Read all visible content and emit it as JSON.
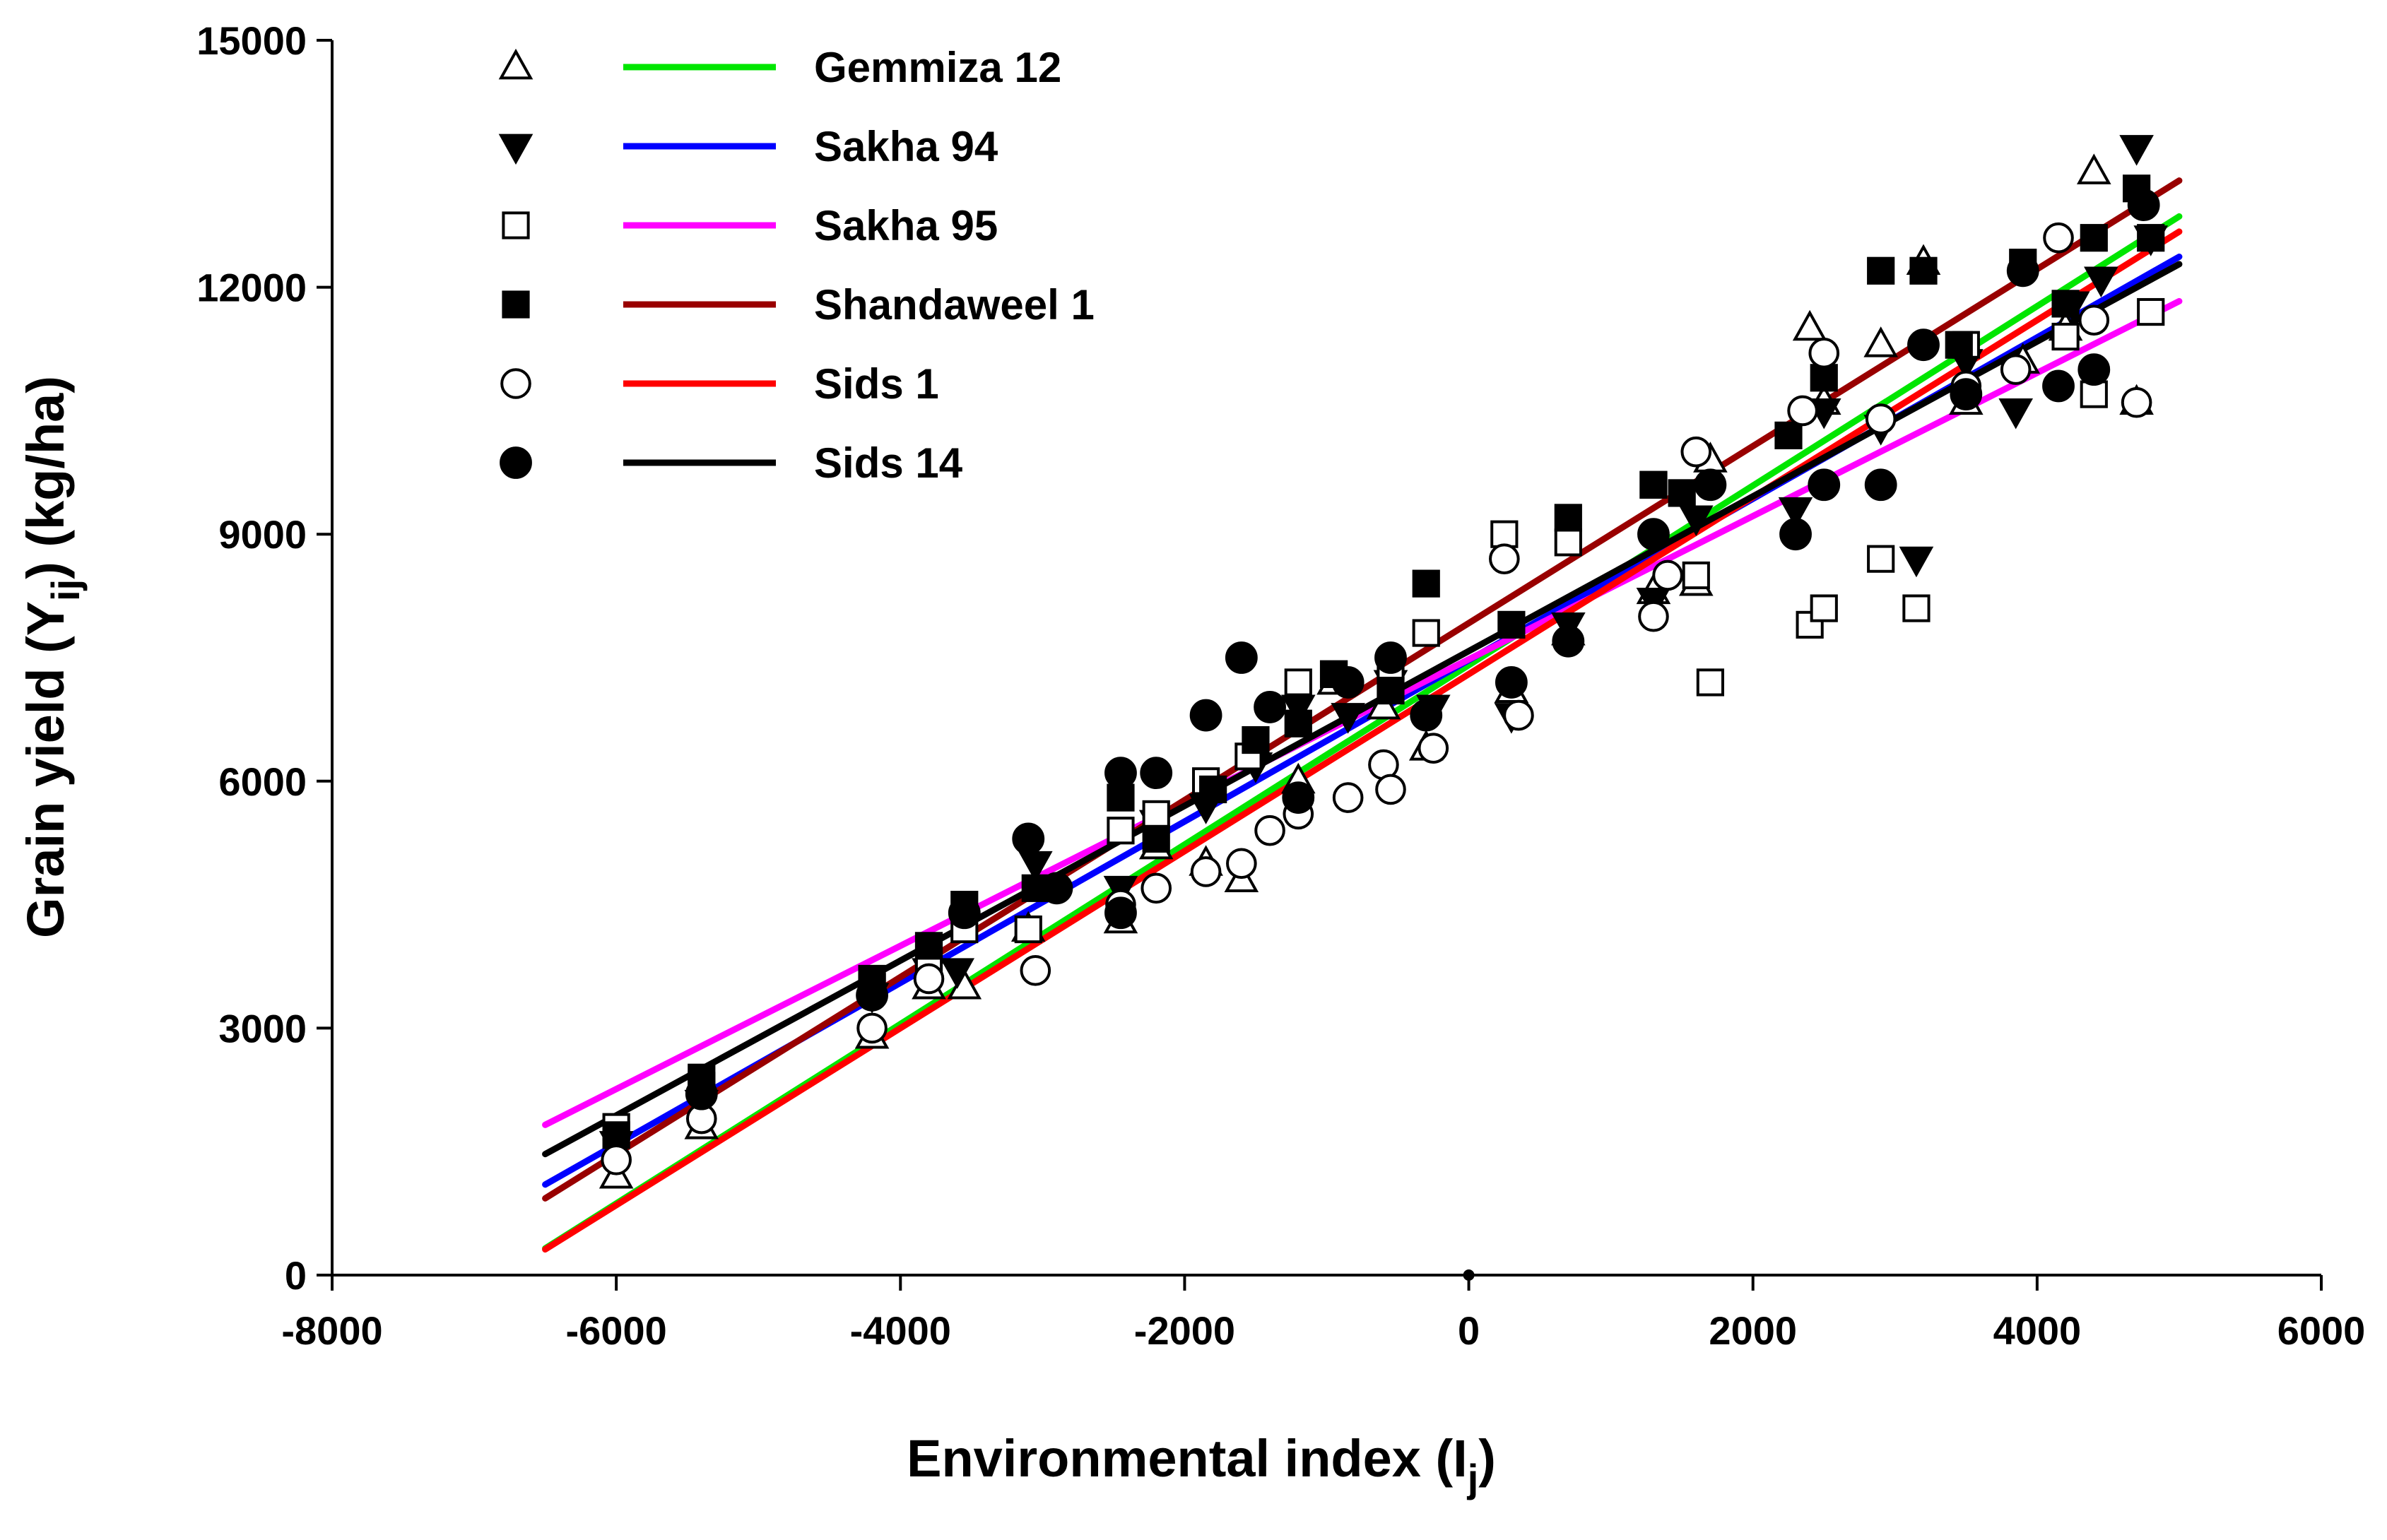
{
  "chart_data": {
    "type": "scatter",
    "title": "",
    "xlabel": "Environmental index (I",
    "xlabel_sub": "j",
    "xlabel_close": ")",
    "ylabel": "Grain yield (Y",
    "ylabel_sub": "ij",
    "ylabel_close": ") (kg/ha)",
    "xlim": [
      -8000,
      6000
    ],
    "ylim": [
      0,
      15000
    ],
    "x_ticks": [
      -8000,
      -6000,
      -4000,
      -2000,
      0,
      2000,
      4000,
      6000
    ],
    "y_ticks": [
      0,
      3000,
      6000,
      9000,
      12000,
      15000
    ],
    "x_tick_labels": [
      "-8000",
      "-6000",
      "-4000",
      "-2000",
      "0",
      "2000",
      "4000",
      "6000"
    ],
    "y_tick_labels": [
      "0",
      "3000",
      "6000",
      "9000",
      "12000",
      "15000"
    ],
    "grid": false,
    "legend_position": "top-left",
    "line_range": [
      -6500,
      5000
    ],
    "series": [
      {
        "name": "Gemmiza 12",
        "marker": "triangle-open",
        "line_color": "#00e600",
        "fit": {
          "intercept": 7410,
          "slope": 1.09
        },
        "points": [
          [
            -6000,
            1200
          ],
          [
            -5400,
            1800
          ],
          [
            -4200,
            2900
          ],
          [
            -3800,
            3500
          ],
          [
            -3550,
            3500
          ],
          [
            -3100,
            4200
          ],
          [
            -2450,
            4300
          ],
          [
            -2200,
            5200
          ],
          [
            -1850,
            5000
          ],
          [
            -1600,
            4800
          ],
          [
            -1200,
            6000
          ],
          [
            -950,
            7200
          ],
          [
            -600,
            6900
          ],
          [
            -300,
            6400
          ],
          [
            300,
            7100
          ],
          [
            700,
            7800
          ],
          [
            1300,
            8300
          ],
          [
            1600,
            8400
          ],
          [
            1700,
            9900
          ],
          [
            2400,
            11500
          ],
          [
            2500,
            10600
          ],
          [
            2900,
            11300
          ],
          [
            3200,
            12300
          ],
          [
            3500,
            10600
          ],
          [
            3900,
            11100
          ],
          [
            4200,
            11500
          ],
          [
            4400,
            13400
          ],
          [
            4700,
            10600
          ]
        ]
      },
      {
        "name": "Sakha 94",
        "marker": "triangle-down-filled",
        "line_color": "#0000ff",
        "fit": {
          "intercept": 7470,
          "slope": 0.98
        },
        "points": [
          [
            -6000,
            1600
          ],
          [
            -5400,
            2100
          ],
          [
            -4200,
            3400
          ],
          [
            -3800,
            3700
          ],
          [
            -3600,
            3700
          ],
          [
            -3050,
            5000
          ],
          [
            -2450,
            4700
          ],
          [
            -2200,
            5500
          ],
          [
            -1850,
            5700
          ],
          [
            -1500,
            6200
          ],
          [
            -1200,
            6900
          ],
          [
            -850,
            6800
          ],
          [
            -550,
            7200
          ],
          [
            -250,
            6900
          ],
          [
            300,
            6800
          ],
          [
            700,
            7900
          ],
          [
            1300,
            8200
          ],
          [
            1600,
            9200
          ],
          [
            2300,
            9300
          ],
          [
            2500,
            10500
          ],
          [
            2900,
            10300
          ],
          [
            3150,
            8700
          ],
          [
            3500,
            11100
          ],
          [
            3850,
            10500
          ],
          [
            4250,
            11800
          ],
          [
            4450,
            12100
          ],
          [
            4700,
            13700
          ],
          [
            4800,
            12600
          ]
        ]
      },
      {
        "name": "Sakha 95",
        "marker": "square-open",
        "line_color": "#ff00ff",
        "fit": {
          "intercept": 7480,
          "slope": 0.87
        },
        "points": [
          [
            -6000,
            1800
          ],
          [
            -5400,
            2300
          ],
          [
            -4200,
            3500
          ],
          [
            -3800,
            3800
          ],
          [
            -3550,
            4200
          ],
          [
            -3100,
            4200
          ],
          [
            -2450,
            5400
          ],
          [
            -2200,
            5600
          ],
          [
            -1850,
            6000
          ],
          [
            -1550,
            6300
          ],
          [
            -1200,
            7200
          ],
          [
            -950,
            7300
          ],
          [
            -550,
            7400
          ],
          [
            -300,
            7800
          ],
          [
            250,
            9000
          ],
          [
            700,
            8900
          ],
          [
            1300,
            9600
          ],
          [
            1600,
            8500
          ],
          [
            1700,
            7200
          ],
          [
            2400,
            7900
          ],
          [
            2500,
            8100
          ],
          [
            2900,
            8700
          ],
          [
            3150,
            8100
          ],
          [
            3500,
            11300
          ],
          [
            4200,
            11400
          ],
          [
            4400,
            10700
          ],
          [
            4800,
            11700
          ]
        ]
      },
      {
        "name": "Shandaweel 1",
        "marker": "square-filled",
        "line_color": "#990000",
        "fit": {
          "intercept": 7920,
          "slope": 1.075
        },
        "points": [
          [
            -6000,
            1700
          ],
          [
            -5400,
            2400
          ],
          [
            -4200,
            3600
          ],
          [
            -3800,
            4000
          ],
          [
            -3550,
            4500
          ],
          [
            -3050,
            4700
          ],
          [
            -2450,
            5800
          ],
          [
            -2200,
            5300
          ],
          [
            -1800,
            5900
          ],
          [
            -1500,
            6500
          ],
          [
            -1200,
            6700
          ],
          [
            -950,
            7300
          ],
          [
            -550,
            7100
          ],
          [
            -300,
            8400
          ],
          [
            300,
            7900
          ],
          [
            700,
            9200
          ],
          [
            1300,
            9600
          ],
          [
            1500,
            9500
          ],
          [
            2250,
            10200
          ],
          [
            2500,
            10900
          ],
          [
            2900,
            12200
          ],
          [
            3200,
            12200
          ],
          [
            3450,
            11300
          ],
          [
            3900,
            12300
          ],
          [
            4200,
            11800
          ],
          [
            4400,
            12600
          ],
          [
            4700,
            13200
          ],
          [
            4800,
            12600
          ]
        ]
      },
      {
        "name": "Sids 1",
        "marker": "circle-open",
        "line_color": "#ff0000",
        "fit": {
          "intercept": 7300,
          "slope": 1.075
        },
        "points": [
          [
            -6000,
            1400
          ],
          [
            -5400,
            1900
          ],
          [
            -4200,
            3000
          ],
          [
            -3800,
            3600
          ],
          [
            -3050,
            3700
          ],
          [
            -2450,
            4500
          ],
          [
            -2200,
            4700
          ],
          [
            -1850,
            4900
          ],
          [
            -1600,
            5000
          ],
          [
            -1400,
            5400
          ],
          [
            -1200,
            5600
          ],
          [
            -850,
            5800
          ],
          [
            -600,
            6200
          ],
          [
            -550,
            5900
          ],
          [
            -250,
            6400
          ],
          [
            250,
            8700
          ],
          [
            350,
            6800
          ],
          [
            1300,
            8000
          ],
          [
            1400,
            8500
          ],
          [
            1600,
            10000
          ],
          [
            2350,
            10500
          ],
          [
            2500,
            11200
          ],
          [
            2900,
            10400
          ],
          [
            3500,
            10800
          ],
          [
            3850,
            11000
          ],
          [
            4150,
            12600
          ],
          [
            4400,
            11600
          ],
          [
            4700,
            10600
          ]
        ]
      },
      {
        "name": "Sids 14",
        "marker": "circle-filled",
        "line_color": "#000000",
        "fit": {
          "intercept": 7580,
          "slope": 0.94
        },
        "points": [
          [
            -5400,
            2200
          ],
          [
            -4200,
            3400
          ],
          [
            -3550,
            4400
          ],
          [
            -3100,
            5300
          ],
          [
            -2900,
            4700
          ],
          [
            -2450,
            6100
          ],
          [
            -2450,
            4400
          ],
          [
            -2200,
            6100
          ],
          [
            -1850,
            6800
          ],
          [
            -1600,
            7500
          ],
          [
            -1400,
            6900
          ],
          [
            -1200,
            5800
          ],
          [
            -850,
            7200
          ],
          [
            -550,
            7500
          ],
          [
            -300,
            6800
          ],
          [
            300,
            7200
          ],
          [
            700,
            7700
          ],
          [
            1300,
            9000
          ],
          [
            1700,
            9600
          ],
          [
            2300,
            9000
          ],
          [
            2500,
            9600
          ],
          [
            2900,
            9600
          ],
          [
            3200,
            11300
          ],
          [
            3500,
            10700
          ],
          [
            3900,
            12200
          ],
          [
            4150,
            10800
          ],
          [
            4400,
            11000
          ],
          [
            4750,
            13000
          ]
        ]
      }
    ]
  }
}
